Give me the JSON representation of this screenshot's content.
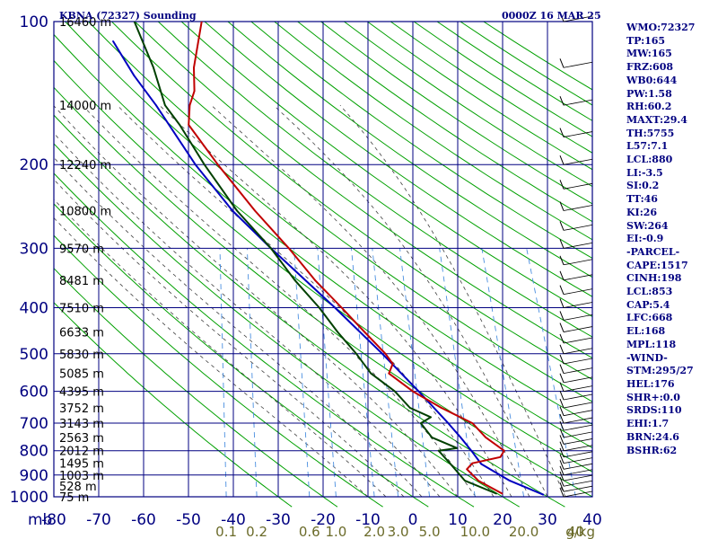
{
  "header": {
    "station": "KBNA (72327) Sounding",
    "time": "0000Z 16 MAR 25"
  },
  "chart_data": {
    "type": "skew-t",
    "pressure_levels": [
      100,
      200,
      300,
      400,
      500,
      600,
      700,
      800,
      900,
      1000
    ],
    "pressure_unit": "mb",
    "temperature_ticks": [
      -80,
      -70,
      -60,
      -50,
      -40,
      -30,
      -20,
      -10,
      0,
      10,
      20,
      30,
      40
    ],
    "mixing_ratio_ticks": [
      {
        "label": "0.1",
        "value": 0.1
      },
      {
        "label": "0.2",
        "value": 0.2
      },
      {
        "label": "0.6",
        "value": 0.6
      },
      {
        "label": "1.0",
        "value": 1.0
      },
      {
        "label": "2.0",
        "value": 2.0
      },
      {
        "label": "3.0",
        "value": 3.0
      },
      {
        "label": "5.0",
        "value": 5.0
      },
      {
        "label": "10.0",
        "value": 10.0
      },
      {
        "label": "20.0",
        "value": 20.0
      },
      {
        "label": "40",
        "value": 40.0
      }
    ],
    "mixing_ratio_unit": "g/kg",
    "height_labels": [
      {
        "p": 100,
        "text": "16460 m"
      },
      {
        "p": 150,
        "text": "14000 m"
      },
      {
        "p": 200,
        "text": "12240 m"
      },
      {
        "p": 250,
        "text": "10800 m"
      },
      {
        "p": 300,
        "text": "9570 m"
      },
      {
        "p": 350,
        "text": "8481 m"
      },
      {
        "p": 400,
        "text": "7510 m"
      },
      {
        "p": 450,
        "text": "6633 m"
      },
      {
        "p": 500,
        "text": "5830 m"
      },
      {
        "p": 550,
        "text": "5085 m"
      },
      {
        "p": 600,
        "text": "4395 m"
      },
      {
        "p": 650,
        "text": "3752 m"
      },
      {
        "p": 700,
        "text": "3143 m"
      },
      {
        "p": 750,
        "text": "2563 m"
      },
      {
        "p": 800,
        "text": "2012 m"
      },
      {
        "p": 850,
        "text": "1495 m"
      },
      {
        "p": 900,
        "text": "1003 m"
      },
      {
        "p": 950,
        "text": "528 m"
      },
      {
        "p": 1000,
        "text": "75 m"
      }
    ],
    "temperature_profile": [
      {
        "p": 985,
        "t": 19.8
      },
      {
        "p": 925,
        "t": 14.0
      },
      {
        "p": 875,
        "t": 11.0
      },
      {
        "p": 850,
        "t": 12.0
      },
      {
        "p": 825,
        "t": 18.0
      },
      {
        "p": 800,
        "t": 18.6
      },
      {
        "p": 750,
        "t": 14.0
      },
      {
        "p": 700,
        "t": 10.5
      },
      {
        "p": 650,
        "t": 3.0
      },
      {
        "p": 600,
        "t": -4.0
      },
      {
        "p": 550,
        "t": -10.0
      },
      {
        "p": 525,
        "t": -9.5
      },
      {
        "p": 500,
        "t": -11.5
      },
      {
        "p": 450,
        "t": -17.0
      },
      {
        "p": 400,
        "t": -23.0
      },
      {
        "p": 350,
        "t": -30.0
      },
      {
        "p": 300,
        "t": -37.0
      },
      {
        "p": 250,
        "t": -46.0
      },
      {
        "p": 200,
        "t": -56.0
      },
      {
        "p": 165,
        "t": -64.0
      },
      {
        "p": 150,
        "t": -64.5
      },
      {
        "p": 140,
        "t": -64.0
      },
      {
        "p": 125,
        "t": -65.0
      },
      {
        "p": 100,
        "t": -65.0
      }
    ],
    "dewpoint_profile": [
      {
        "p": 985,
        "t": 18.5
      },
      {
        "p": 925,
        "t": 11.0
      },
      {
        "p": 850,
        "t": 7.0
      },
      {
        "p": 800,
        "t": 4.0
      },
      {
        "p": 790,
        "t": 8.0
      },
      {
        "p": 750,
        "t": 2.0
      },
      {
        "p": 700,
        "t": -1.0
      },
      {
        "p": 680,
        "t": 1.0
      },
      {
        "p": 650,
        "t": -4.0
      },
      {
        "p": 600,
        "t": -8.0
      },
      {
        "p": 550,
        "t": -14.0
      },
      {
        "p": 500,
        "t": -18.0
      },
      {
        "p": 450,
        "t": -23.0
      },
      {
        "p": 400,
        "t": -28.0
      },
      {
        "p": 350,
        "t": -34.5
      },
      {
        "p": 300,
        "t": -41.0
      },
      {
        "p": 250,
        "t": -50.0
      },
      {
        "p": 200,
        "t": -59.0
      },
      {
        "p": 165,
        "t": -66.0
      },
      {
        "p": 150,
        "t": -70.0
      },
      {
        "p": 125,
        "t": -74.0
      },
      {
        "p": 100,
        "t": -80.0
      }
    ],
    "parcel_profile": [
      {
        "p": 990,
        "t": 29.0
      },
      {
        "p": 925,
        "t": 21.0
      },
      {
        "p": 853,
        "t": 14.0
      },
      {
        "p": 800,
        "t": 11.3
      },
      {
        "p": 750,
        "t": 8.4
      },
      {
        "p": 700,
        "t": 5.1
      },
      {
        "p": 600,
        "t": -2.7
      },
      {
        "p": 500,
        "t": -12.2
      },
      {
        "p": 400,
        "t": -24.5
      },
      {
        "p": 300,
        "t": -41.0
      },
      {
        "p": 250,
        "t": -51.0
      },
      {
        "p": 200,
        "t": -61.0
      },
      {
        "p": 150,
        "t": -72.0
      },
      {
        "p": 130,
        "t": -78.0
      },
      {
        "p": 110,
        "t": -84.0
      }
    ]
  },
  "stats": [
    "WMO:72327",
    "TP:165",
    "MW:165",
    "FRZ:608",
    "WB0:644",
    "PW:1.58",
    "RH:60.2",
    "MAXT:29.4",
    "TH:5755",
    "L57:7.1",
    "LCL:880",
    "LI:-3.5",
    "SI:0.2",
    "TT:46",
    "KI:26",
    "SW:264",
    "EI:-0.9",
    "-PARCEL-",
    "CAPE:1517",
    "CINH:198",
    "LCL:853",
    "CAP:5.4",
    "LFC:668",
    "EL:168",
    "MPL:118",
    "-WIND-",
    "STM:295/27",
    "HEL:176",
    "SHR+:0.0",
    "SRDS:110",
    "EHI:1.7",
    "BRN:24.6",
    "BSHR:62"
  ],
  "colors": {
    "isobar_isotherm": "#000080",
    "dry_adiabat": "#00a000",
    "moist_adiabat": "#404040",
    "mixing_ratio": "#4a8fe0",
    "temperature": "#c00000",
    "dewpoint": "#004000",
    "parcel": "#0000c0",
    "wind_barb": "#000000"
  }
}
